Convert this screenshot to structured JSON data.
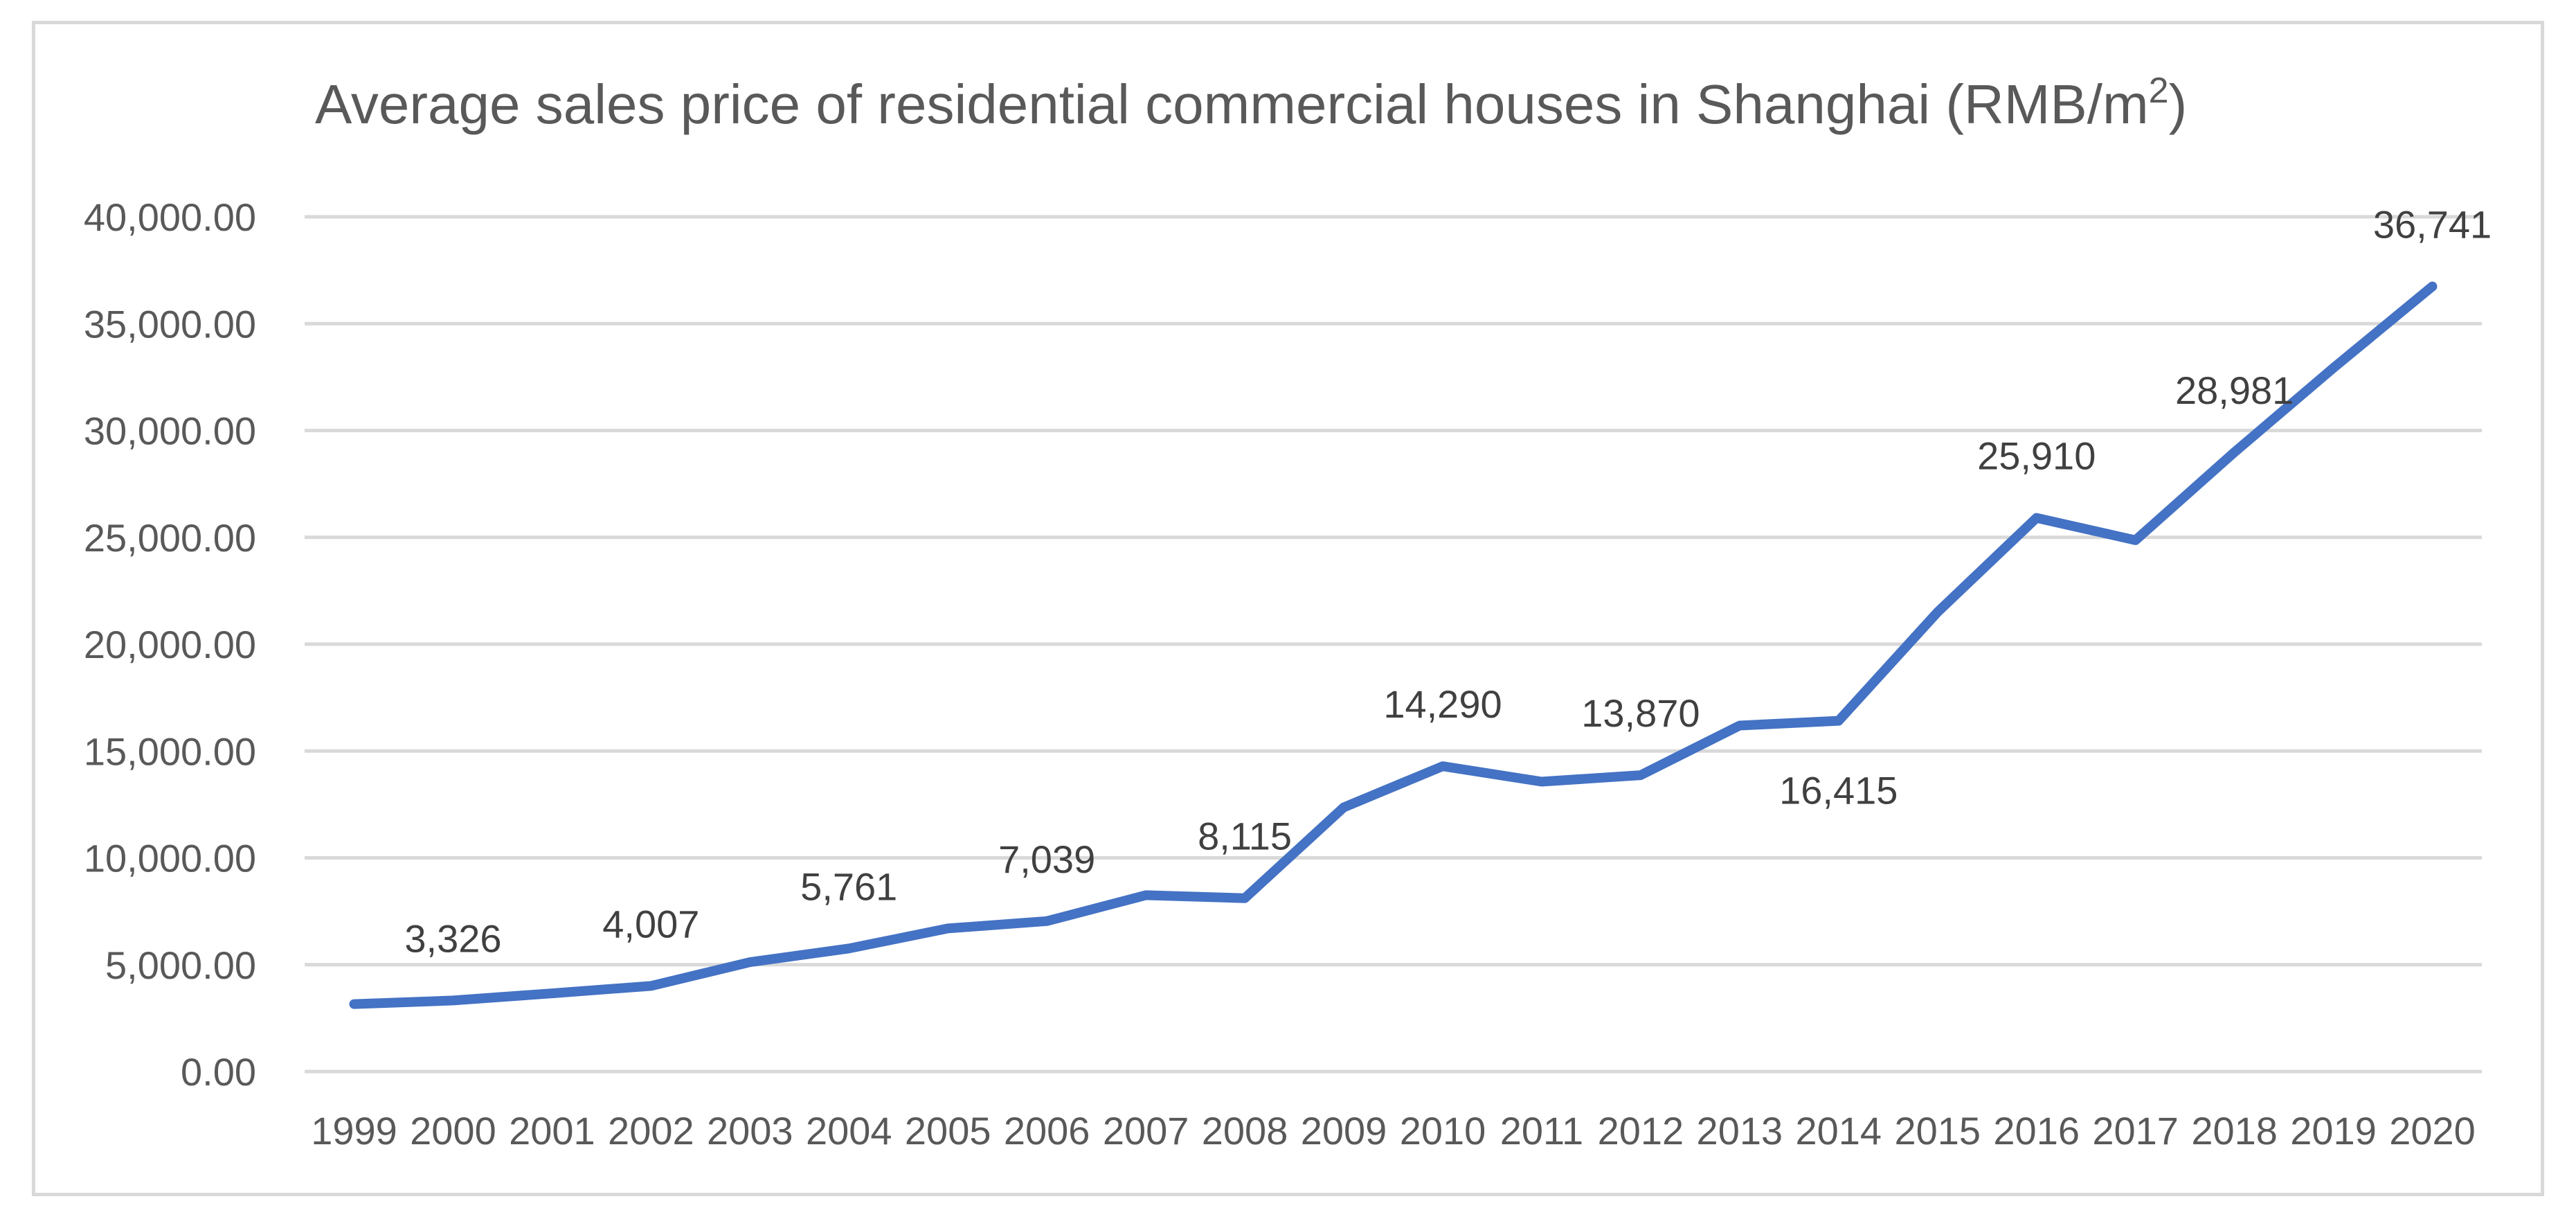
{
  "chart_data": {
    "type": "line",
    "title": "Average sales price of residential commercial houses in Shanghai (RMB/m",
    "title_superscript": "2",
    "title_close": ")",
    "xlabel": "",
    "ylabel": "",
    "ylim": [
      0,
      40000
    ],
    "yticks": [
      0,
      5000,
      10000,
      15000,
      20000,
      25000,
      30000,
      35000,
      40000
    ],
    "ytick_labels": [
      "0.00",
      "5,000.00",
      "10,000.00",
      "15,000.00",
      "20,000.00",
      "25,000.00",
      "30,000.00",
      "35,000.00",
      "40,000.00"
    ],
    "grid": true,
    "legend": "none",
    "categories": [
      "1999",
      "2000",
      "2001",
      "2002",
      "2003",
      "2004",
      "2005",
      "2006",
      "2007",
      "2008",
      "2009",
      "2010",
      "2011",
      "2012",
      "2013",
      "2014",
      "2015",
      "2016",
      "2017",
      "2018",
      "2019",
      "2020"
    ],
    "series": [
      {
        "name": "Average sales price",
        "color": "#4472c4",
        "values": [
          3158,
          3326,
          3659,
          4007,
          5118,
          5761,
          6698,
          7039,
          8253,
          8115,
          12364,
          14290,
          13566,
          13870,
          16192,
          16415,
          21501,
          25910,
          24866,
          28981,
          32926,
          36741
        ]
      }
    ],
    "data_labels": [
      {
        "index": 1,
        "text": "3,326",
        "placement": "above"
      },
      {
        "index": 3,
        "text": "4,007",
        "placement": "above"
      },
      {
        "index": 5,
        "text": "5,761",
        "placement": "above"
      },
      {
        "index": 7,
        "text": "7,039",
        "placement": "above"
      },
      {
        "index": 9,
        "text": "8,115",
        "placement": "above"
      },
      {
        "index": 11,
        "text": "14,290",
        "placement": "above"
      },
      {
        "index": 13,
        "text": "13,870",
        "placement": "above"
      },
      {
        "index": 15,
        "text": "16,415",
        "placement": "below"
      },
      {
        "index": 17,
        "text": "25,910",
        "placement": "above"
      },
      {
        "index": 19,
        "text": "28,981",
        "placement": "above"
      },
      {
        "index": 21,
        "text": "36,741",
        "placement": "above"
      }
    ]
  }
}
